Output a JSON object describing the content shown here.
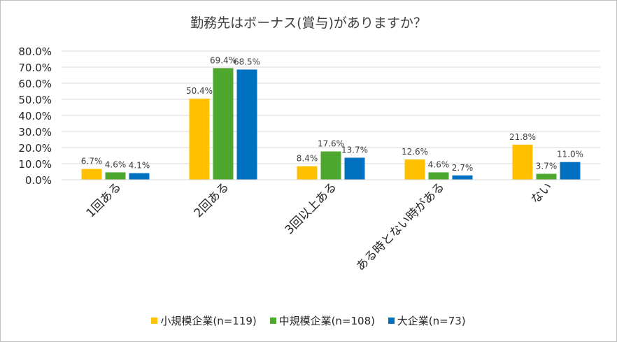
{
  "chart_data": {
    "type": "bar",
    "title": "勤務先はボーナス(賞与)がありますか？",
    "categories": [
      "1回ある",
      "2回ある",
      "3回以上ある",
      "ある時とない時がある",
      "ない"
    ],
    "series": [
      {
        "name": "小規模企業(n=119)",
        "color": "#ffc000",
        "values": [
          6.7,
          50.4,
          8.4,
          12.6,
          21.8
        ]
      },
      {
        "name": "中規模企業(n=108)",
        "color": "#4ea72e",
        "values": [
          4.6,
          69.4,
          17.6,
          4.6,
          3.7
        ]
      },
      {
        "name": "大企業(n=73)",
        "color": "#0070c0",
        "values": [
          4.1,
          68.5,
          13.7,
          2.7,
          11.0
        ]
      }
    ],
    "ylim": [
      0,
      80
    ],
    "yticks": [
      0,
      10,
      20,
      30,
      40,
      50,
      60,
      70,
      80
    ],
    "ytick_labels": [
      "0.0%",
      "10.0%",
      "20.0%",
      "30.0%",
      "40.0%",
      "50.0%",
      "60.0%",
      "70.0%",
      "80.0%"
    ],
    "data_labels": [
      [
        "6.7%",
        "50.4%",
        "8.4%",
        "12.6%",
        "21.8%"
      ],
      [
        "4.6%",
        "69.4%",
        "17.6%",
        "4.6%",
        "3.7%"
      ],
      [
        "4.1%",
        "68.5%",
        "13.7%",
        "2.7%",
        "11.0%"
      ]
    ],
    "legend_position": "bottom",
    "grid": true,
    "xlabel": "",
    "ylabel": ""
  }
}
